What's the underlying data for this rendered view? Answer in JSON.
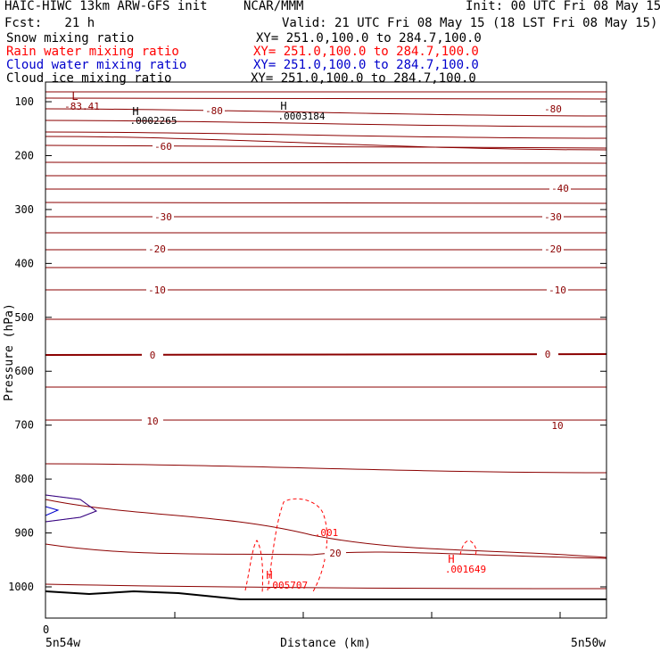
{
  "header": {
    "model": "HAIC-HIWC 13km ARW-GFS init",
    "org": "NCAR/MMM",
    "init": "Init: 00 UTC Fri 08 May 15",
    "fcst": "Fcst:   21 h",
    "valid": "Valid: 21 UTC Fri 08 May 15 (18 LST Fri 08 May 15)"
  },
  "fields": [
    {
      "name": "Snow mixing ratio",
      "xy": "XY= 251.0,100.0 to 284.7,100.0",
      "color": "#000000"
    },
    {
      "name": "Rain water mixing ratio",
      "xy": "XY= 251.0,100.0 to 284.7,100.0",
      "color": "#ff0000"
    },
    {
      "name": "Cloud water mixing ratio",
      "xy": "XY= 251.0,100.0 to 284.7,100.0",
      "color": "#0000cc"
    },
    {
      "name": "Cloud ice mixing ratio",
      "xy": "XY= 251.0,100.0 to 284.7,100.0",
      "color": "#000000"
    }
  ],
  "chart_data": {
    "type": "contour",
    "ylabel": "Pressure (hPa)",
    "xlabel": "Distance (km)",
    "y_ticks": [
      100,
      200,
      300,
      400,
      500,
      600,
      700,
      800,
      900,
      1000
    ],
    "ylim": [
      1000,
      50
    ],
    "x_tick_label": "0",
    "x_left_label": "5n54w",
    "x_right_label": "5n50w",
    "temperature_contour_labels": [
      "-80",
      "-80",
      "-60",
      "-40",
      "-30",
      "-30",
      "-20",
      "-20",
      "-10",
      "-10",
      "0",
      "0",
      "10",
      "10",
      "20"
    ],
    "extrema": [
      {
        "type": "L",
        "value": "-83.41",
        "color": "#8b0000"
      },
      {
        "type": "H",
        "value": ".0002265",
        "color": "#000000"
      },
      {
        "type": "H",
        "value": ".0003184",
        "color": "#000000"
      },
      {
        "type": "H",
        "value": ".005707",
        "color": "#ff0000"
      },
      {
        "type": "H",
        "value": ".001649",
        "color": "#ff0000"
      }
    ],
    "rain_contour_label": ".001",
    "colors": {
      "temperature": "#8b0000",
      "rain": "#ff0000",
      "cloud_water": "#0000cc",
      "terrain": "#000000"
    }
  }
}
